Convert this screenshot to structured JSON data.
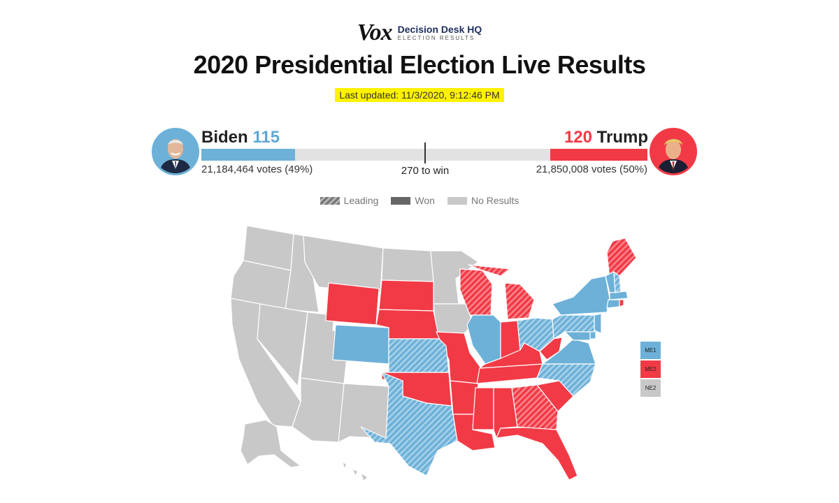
{
  "brand": {
    "publisher": "Vox",
    "partner_line1": "Decision Desk HQ",
    "partner_line2": "ELECTION RESULTS"
  },
  "title": "2020 Presidential Election Live Results",
  "last_updated": "Last updated: 11/3/2020, 9:12:46 PM",
  "candidates": {
    "biden": {
      "name": "Biden",
      "electoral": "115",
      "votes": "21,184,464 votes (49%)",
      "color": "#6db1d8"
    },
    "trump": {
      "name": "Trump",
      "electoral": "120",
      "votes": "21,850,008 votes (50%)",
      "color": "#f23a46"
    }
  },
  "threshold_label": "270 to win",
  "progress": {
    "biden_fraction": 0.2099,
    "trump_fraction": 0.2185
  },
  "legend": {
    "leading": "Leading",
    "won": "Won",
    "no_results": "No Results"
  },
  "colors": {
    "dem": "#6db1d8",
    "rep": "#f23a46",
    "no_results": "#c8c8c8",
    "highlight": "#fff200"
  },
  "nebraska_districts": [
    {
      "label": "ME1",
      "status": "dem"
    },
    {
      "label": "ME2",
      "status": "rep"
    },
    {
      "label": "NE2",
      "status": "none"
    }
  ],
  "states": {
    "WY": "rep-won",
    "SD": "rep-won",
    "NE": "rep-won",
    "OK": "rep-won",
    "MO": "rep-won",
    "AR": "rep-won",
    "LA": "rep-won",
    "MS": "rep-won",
    "AL": "rep-won",
    "TN": "rep-won",
    "KY": "rep-won",
    "IN": "rep-won",
    "WV": "rep-won",
    "SC": "rep-won",
    "FL": "rep-won",
    "WI": "rep-leading",
    "MI": "rep-leading",
    "GA": "rep-leading",
    "ME": "rep-leading",
    "CO": "dem-won",
    "IL": "dem-won",
    "VA": "dem-won",
    "NY": "dem-won",
    "VT": "dem-won",
    "MA": "dem-won",
    "CT": "dem-won",
    "NJ": "dem-won",
    "DE": "dem-won",
    "MD": "dem-won",
    "KS": "dem-leading",
    "TX": "dem-leading",
    "OH": "dem-leading",
    "NC": "dem-leading",
    "PA": "dem-leading",
    "NH": "dem-leading"
  }
}
